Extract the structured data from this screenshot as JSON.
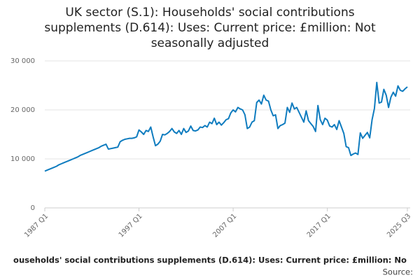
{
  "chart_data": {
    "type": "line",
    "title": [
      "UK sector (S.1): Households' social contributions",
      "supplements (D.614): Uses: Current price: £million: Not",
      "seasonally adjusted"
    ],
    "footer": "ouseholds' social contributions supplements (D.614): Uses: Current price: £million: No",
    "source": "Source:",
    "categories": [
      "1987 Q1",
      null,
      null,
      null,
      null,
      null,
      null,
      null,
      null,
      null,
      null,
      null,
      null,
      null,
      null,
      null,
      null,
      null,
      null,
      null,
      null,
      null,
      null,
      null,
      null,
      null,
      null,
      null,
      null,
      null,
      null,
      null,
      null,
      null,
      null,
      null,
      null,
      null,
      null,
      null,
      "1997 Q1",
      null,
      null,
      null,
      null,
      null,
      null,
      null,
      null,
      null,
      null,
      null,
      null,
      null,
      null,
      null,
      null,
      null,
      null,
      null,
      null,
      null,
      null,
      null,
      null,
      null,
      null,
      null,
      null,
      null,
      null,
      null,
      null,
      null,
      null,
      null,
      null,
      null,
      null,
      null,
      "2007 Q1",
      null,
      null,
      null,
      null,
      null,
      null,
      null,
      null,
      null,
      null,
      null,
      null,
      null,
      null,
      null,
      null,
      null,
      null,
      null,
      null,
      null,
      null,
      null,
      null,
      null,
      null,
      null,
      null,
      null,
      null,
      null,
      null,
      null,
      null,
      null,
      null,
      null,
      null,
      null,
      "2017 Q1",
      null,
      null,
      null,
      null,
      null,
      null,
      null,
      null,
      null,
      null,
      null,
      null,
      null,
      null,
      null,
      null,
      null,
      null,
      null,
      null,
      null,
      null,
      null,
      null,
      null,
      null,
      null,
      null,
      null,
      null,
      null,
      null,
      null,
      "2025 Q3"
    ],
    "series": [
      {
        "color": "#0f7cbf",
        "values": [
          7500,
          7700,
          7900,
          8100,
          8300,
          8500,
          8800,
          9000,
          9200,
          9400,
          9600,
          9800,
          10000,
          10200,
          10400,
          10700,
          10900,
          11100,
          11300,
          11500,
          11700,
          11900,
          12100,
          12300,
          12600,
          12800,
          13000,
          12000,
          12100,
          12200,
          12300,
          12400,
          13500,
          13800,
          14000,
          14100,
          14200,
          14200,
          14300,
          14500,
          15900,
          15500,
          15000,
          15800,
          15600,
          16500,
          14500,
          12700,
          13000,
          13600,
          15000,
          14900,
          15200,
          15600,
          16200,
          15500,
          15200,
          15800,
          15000,
          16200,
          15400,
          15700,
          16700,
          15800,
          15700,
          15900,
          16500,
          16400,
          16800,
          16500,
          17500,
          17200,
          18300,
          17000,
          17500,
          16900,
          17400,
          18000,
          18200,
          19400,
          20000,
          19600,
          20500,
          20200,
          20000,
          19000,
          16200,
          16500,
          17500,
          17800,
          21500,
          22000,
          21200,
          23000,
          22000,
          21800,
          20000,
          18800,
          19000,
          16200,
          16800,
          17000,
          17300,
          20500,
          19500,
          21400,
          20200,
          20500,
          19500,
          18500,
          17500,
          19800,
          17800,
          17200,
          16600,
          15600,
          20900,
          18000,
          17000,
          18300,
          17900,
          16700,
          16500,
          17000,
          16000,
          17800,
          16500,
          15200,
          12500,
          12300,
          10700,
          11000,
          11200,
          10900,
          15300,
          14200,
          14800,
          15400,
          14300,
          18000,
          20300,
          25600,
          21400,
          21600,
          24200,
          23000,
          20500,
          22600,
          23600,
          22800,
          24900,
          24000,
          23800,
          24300,
          24700
        ]
      }
    ],
    "ylim": [
      0,
      30000
    ],
    "yticks": [
      0,
      {
        "value": 10000,
        "label": "10 000"
      },
      {
        "value": 20000,
        "label": "20 000"
      },
      {
        "value": 30000,
        "label": "30 000"
      }
    ],
    "grid": true
  }
}
